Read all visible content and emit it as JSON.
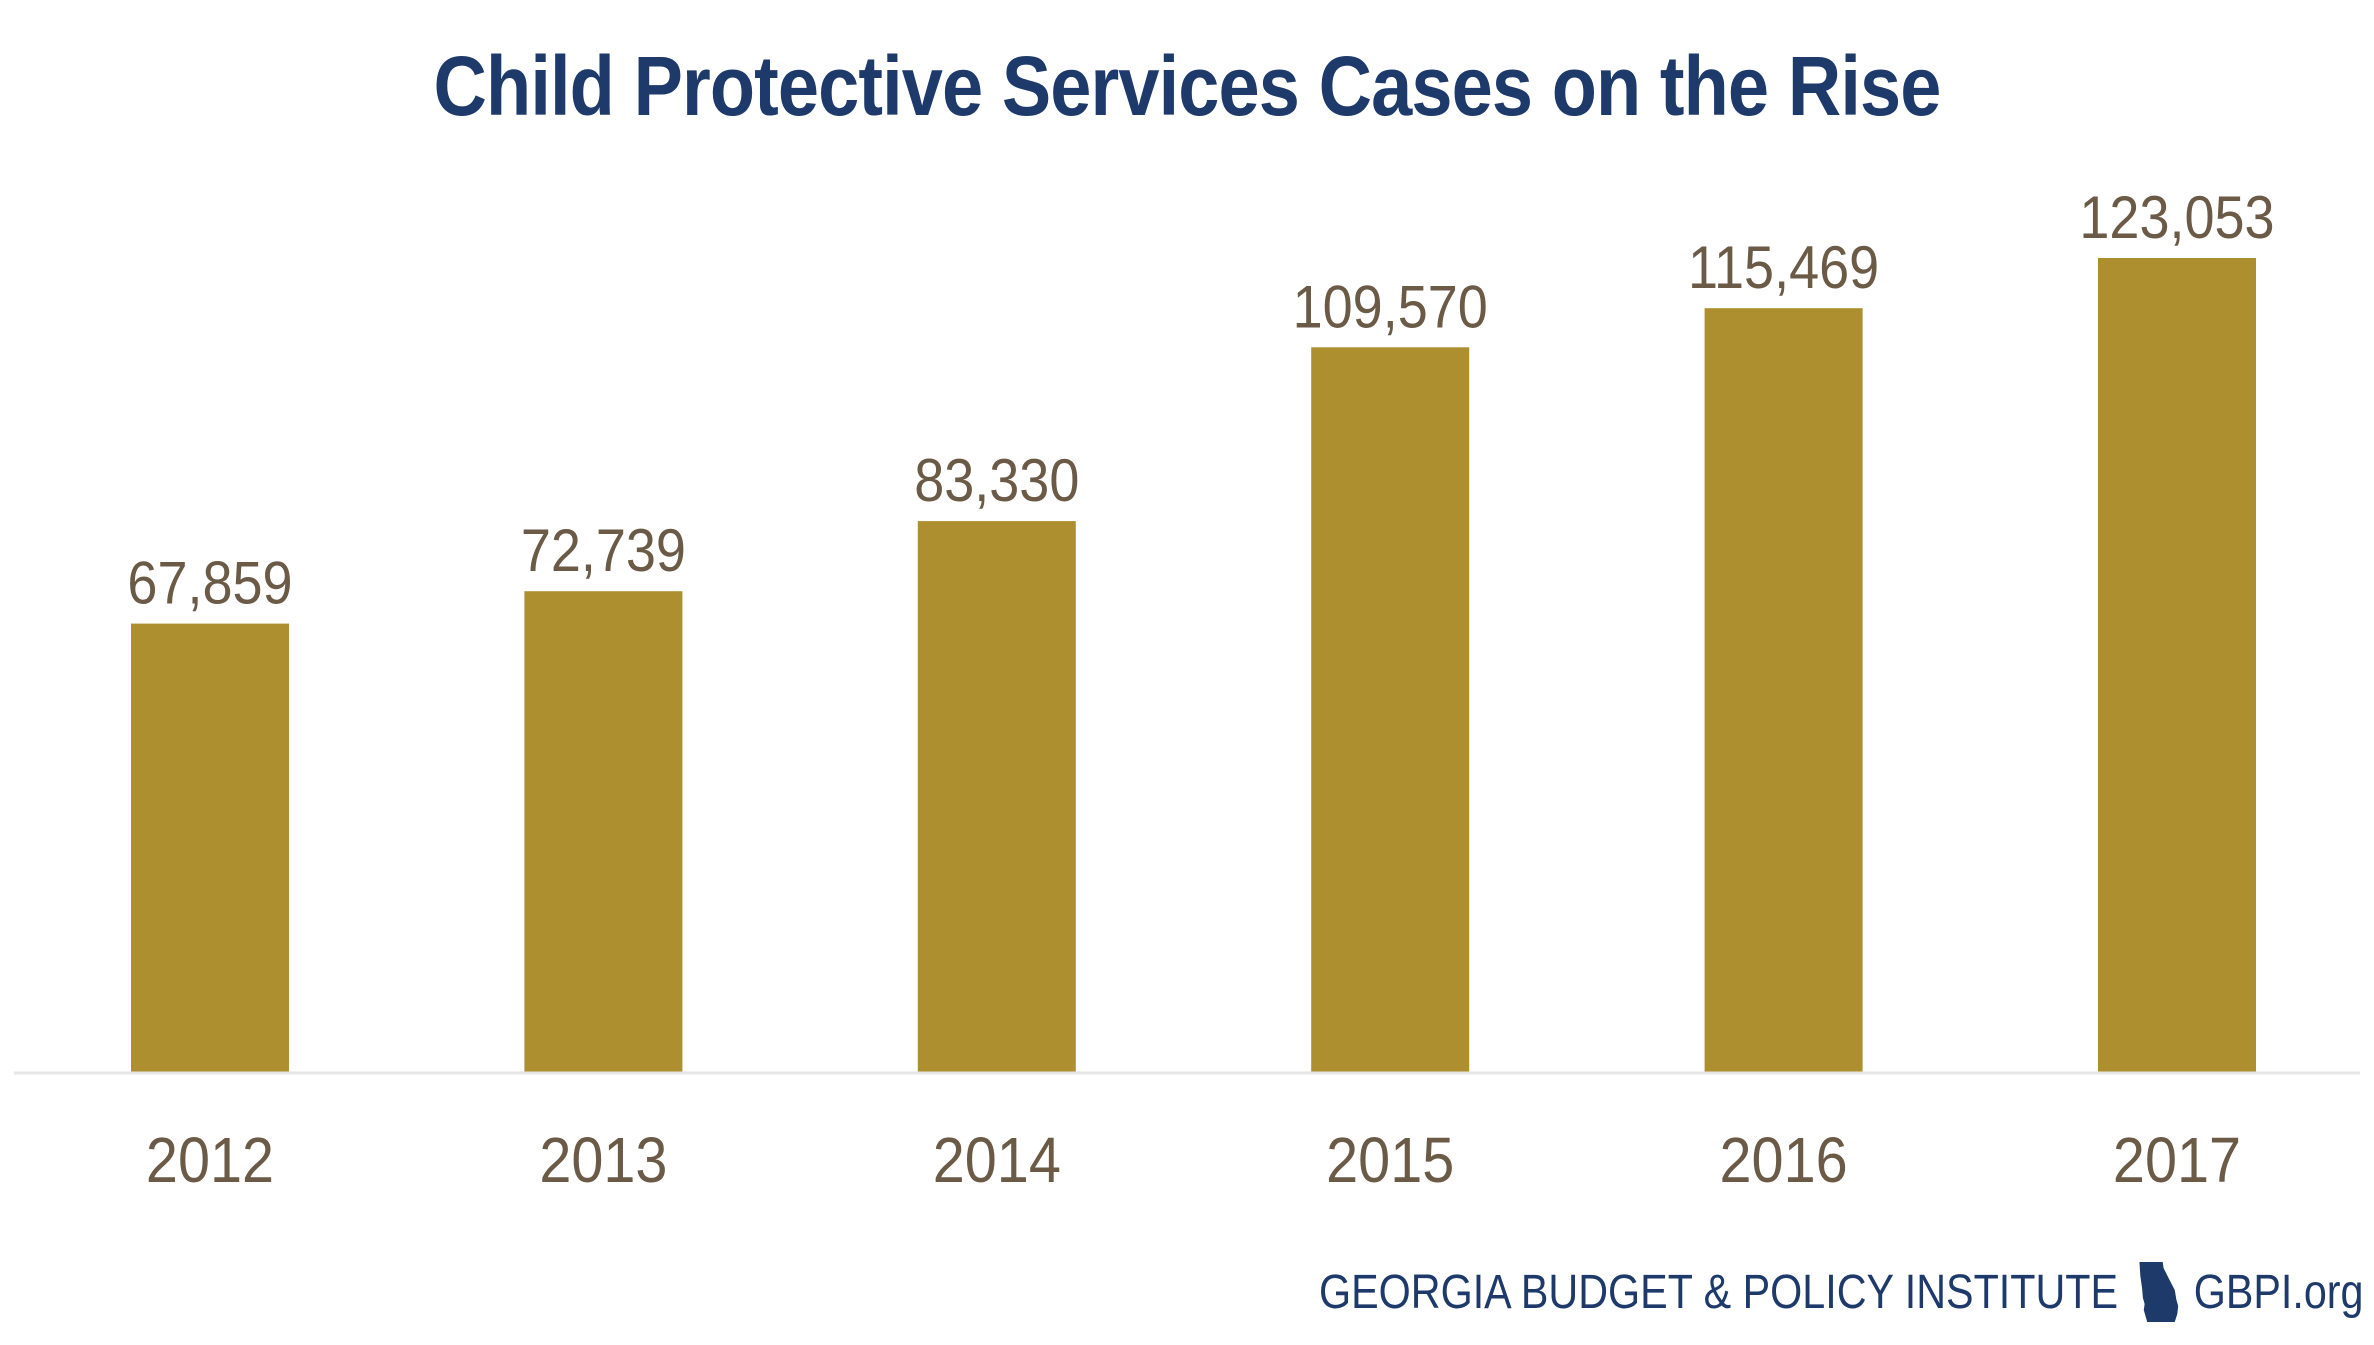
{
  "chart_data": {
    "type": "bar",
    "title": "Child Protective Services Cases on the Rise",
    "categories": [
      "2012",
      "2013",
      "2014",
      "2015",
      "2016",
      "2017"
    ],
    "values": [
      67859,
      72739,
      83330,
      109570,
      115469,
      123053
    ],
    "data_labels": [
      "67,859",
      "72,739",
      "83,330",
      "109,570",
      "115,469",
      "123,053"
    ],
    "xlabel": "",
    "ylabel": "",
    "ylim": [
      0,
      123053
    ],
    "grid": false,
    "legend": "none",
    "bar_color": "#ae8f2f",
    "label_color": "#6a5a46",
    "title_color": "#1e3a6b"
  },
  "footer": {
    "org_name": "GEORGIA BUDGET & POLICY INSTITUTE",
    "website": "GBPI.org",
    "icon": "georgia-map-icon"
  }
}
